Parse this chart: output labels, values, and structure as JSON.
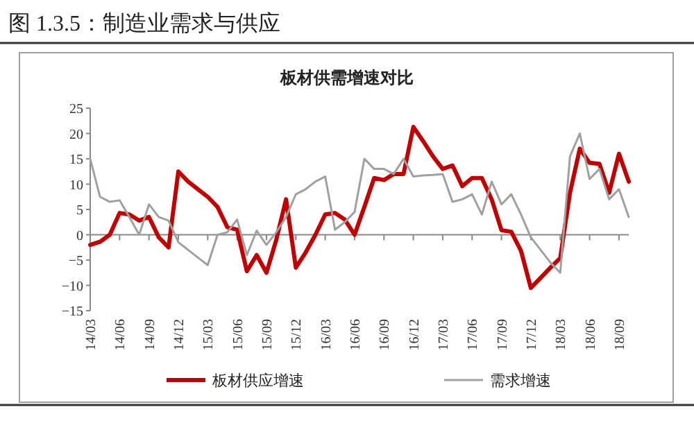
{
  "chart_data": {
    "type": "line",
    "title": "图 1.3.5：制造业需求与供应",
    "subtitle": "板材供需增速对比",
    "categories": [
      "14/03",
      null,
      null,
      "14/06",
      null,
      null,
      "14/09",
      null,
      null,
      "14/12",
      null,
      null,
      "15/03",
      null,
      null,
      "15/06",
      null,
      null,
      "15/09",
      null,
      null,
      "15/12",
      null,
      null,
      "16/03",
      null,
      null,
      "16/06",
      null,
      null,
      "16/09",
      null,
      null,
      "16/12",
      null,
      null,
      "17/03",
      null,
      null,
      "17/06",
      null,
      null,
      "17/09",
      null,
      null,
      "17/12",
      null,
      null,
      "18/03",
      null,
      null,
      "18/06",
      null,
      null,
      "18/09",
      null
    ],
    "series": [
      {
        "name": "板材供应增速",
        "color": "#c00000",
        "values": [
          -2,
          -1.4,
          0,
          4.3,
          4,
          2.8,
          3.5,
          -0.5,
          -2.5,
          12.5,
          10.5,
          9,
          7.5,
          5.5,
          1.5,
          1,
          -7.2,
          -4,
          -7.5,
          -1,
          7,
          -6.5,
          -3.5,
          0,
          4,
          4.3,
          3,
          0,
          5.5,
          11.2,
          10.8,
          12,
          12,
          21.3,
          18.5,
          15.5,
          13,
          13.7,
          9.6,
          11.2,
          11.2,
          7,
          0.9,
          0.6,
          -3.2,
          -10.5,
          -8.5,
          -6.5,
          -4.6,
          8.3,
          17,
          14.2,
          14,
          8.3,
          16,
          10.5
        ]
      },
      {
        "name": "需求增速",
        "color": "#a0a0a0",
        "values": [
          15,
          7.5,
          6.5,
          6.8,
          3.5,
          0,
          6,
          3.5,
          2.8,
          -1.5,
          -3,
          -4.5,
          -6,
          0,
          0.5,
          3,
          -4,
          0.8,
          -2,
          0.5,
          3.5,
          8,
          9,
          10.5,
          11.5,
          1,
          2.5,
          4.5,
          15,
          13,
          13,
          12,
          15,
          11.5,
          11.7,
          11.8,
          12,
          6.5,
          7,
          8,
          4,
          10.5,
          6,
          8,
          4,
          -0.5,
          -3,
          -5.5,
          -7.5,
          15.5,
          20,
          11,
          13,
          7,
          9,
          3.5
        ]
      }
    ],
    "ylim": [
      -15,
      25
    ],
    "yticks": [
      -15,
      -10,
      -5,
      0,
      5,
      10,
      15,
      20,
      25
    ],
    "legend": "bottom",
    "marker": "none",
    "line_style": "solid"
  }
}
